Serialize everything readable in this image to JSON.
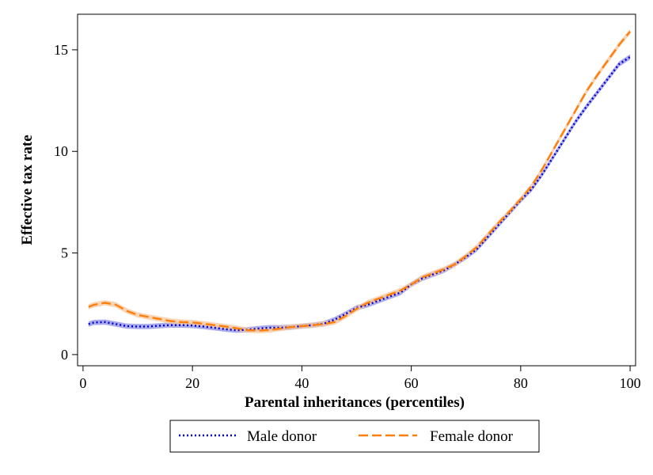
{
  "chart_data": {
    "type": "line",
    "xlabel": "Parental inheritances (percentiles)",
    "ylabel": "Effective tax rate",
    "xlim": [
      -1,
      101
    ],
    "ylim": [
      -0.55,
      16.75
    ],
    "xticks": [
      0,
      20,
      40,
      60,
      80,
      100
    ],
    "yticks": [
      0,
      5,
      10,
      15
    ],
    "grid": false,
    "legend_position": "bottom",
    "series": [
      {
        "name": "Male donor",
        "color": "#0000cc",
        "band_color": "#8f8fe6",
        "style": "dotted",
        "x": [
          1,
          2,
          4,
          6,
          8,
          10,
          12,
          14,
          16,
          18,
          20,
          22,
          24,
          26,
          28,
          30,
          32,
          34,
          36,
          38,
          40,
          42,
          44,
          46,
          48,
          50,
          52,
          54,
          56,
          58,
          60,
          62,
          64,
          66,
          68,
          70,
          72,
          74,
          76,
          78,
          80,
          82,
          84,
          86,
          88,
          90,
          92,
          94,
          96,
          98,
          100
        ],
        "values": [
          1.5,
          1.58,
          1.6,
          1.5,
          1.4,
          1.38,
          1.38,
          1.42,
          1.45,
          1.45,
          1.43,
          1.38,
          1.32,
          1.25,
          1.2,
          1.22,
          1.28,
          1.32,
          1.32,
          1.35,
          1.4,
          1.45,
          1.52,
          1.72,
          2.0,
          2.3,
          2.45,
          2.65,
          2.85,
          3.05,
          3.45,
          3.75,
          3.95,
          4.15,
          4.45,
          4.8,
          5.2,
          5.8,
          6.4,
          7.0,
          7.6,
          8.15,
          8.9,
          9.75,
          10.6,
          11.45,
          12.2,
          12.9,
          13.6,
          14.3,
          14.65
        ]
      },
      {
        "name": "Female donor",
        "color": "#ff7f0e",
        "band_color": "#f7c79c",
        "style": "dashed",
        "x": [
          1,
          2,
          4,
          6,
          8,
          10,
          12,
          14,
          16,
          18,
          20,
          22,
          24,
          26,
          28,
          30,
          32,
          34,
          36,
          38,
          40,
          42,
          44,
          46,
          48,
          50,
          52,
          54,
          56,
          58,
          60,
          62,
          64,
          66,
          68,
          70,
          72,
          74,
          76,
          78,
          80,
          82,
          84,
          86,
          88,
          90,
          92,
          94,
          96,
          98,
          100
        ],
        "values": [
          2.35,
          2.45,
          2.55,
          2.45,
          2.15,
          1.95,
          1.85,
          1.75,
          1.65,
          1.6,
          1.58,
          1.52,
          1.45,
          1.38,
          1.3,
          1.2,
          1.18,
          1.2,
          1.28,
          1.35,
          1.4,
          1.45,
          1.5,
          1.6,
          1.9,
          2.25,
          2.55,
          2.75,
          2.95,
          3.15,
          3.45,
          3.8,
          4.0,
          4.2,
          4.45,
          4.85,
          5.3,
          5.9,
          6.5,
          7.05,
          7.65,
          8.3,
          9.15,
          10.1,
          11.05,
          12.0,
          12.95,
          13.75,
          14.5,
          15.25,
          15.9
        ]
      }
    ]
  }
}
